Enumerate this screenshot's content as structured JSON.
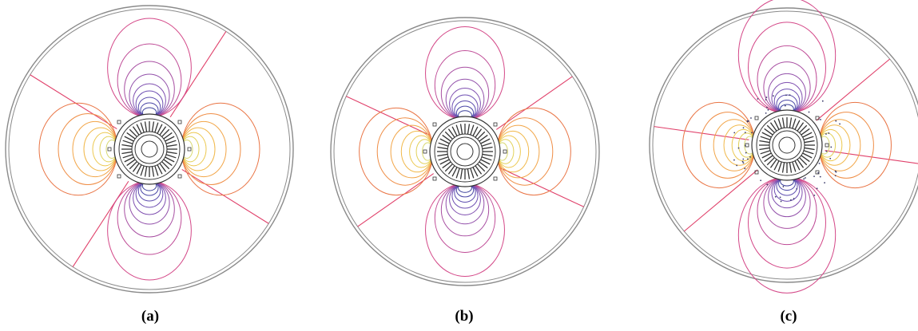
{
  "panels": [
    {
      "caption": "(a)",
      "lobe_scale": 1.0,
      "diag_angles_deg": [
        -57,
        -148
      ],
      "extra_outer": false,
      "scatter_dots": false
    },
    {
      "caption": "(b)",
      "lobe_scale": 0.94,
      "diag_angles_deg": [
        -35,
        -155
      ],
      "extra_outer": false,
      "scatter_dots": false
    },
    {
      "caption": "(c)",
      "lobe_scale": 0.92,
      "diag_angles_deg": [
        -40,
        -172
      ],
      "extra_outer": true,
      "scatter_dots": true
    }
  ],
  "colors": {
    "boundary": "#8a8a8a",
    "machine": "#333333",
    "contour_vertical": [
      "#3a3f9a",
      "#4a46a6",
      "#5c4cae",
      "#6e4fb2",
      "#7f4fb0",
      "#9250aa",
      "#a84fa2",
      "#bf4b96",
      "#d44888"
    ],
    "contour_horizontal": [
      "#d8d870",
      "#e2d25a",
      "#ecc84f",
      "#f1b84a",
      "#f2a547",
      "#ef8d45",
      "#e97444"
    ],
    "diagonal": "#e0406a"
  }
}
